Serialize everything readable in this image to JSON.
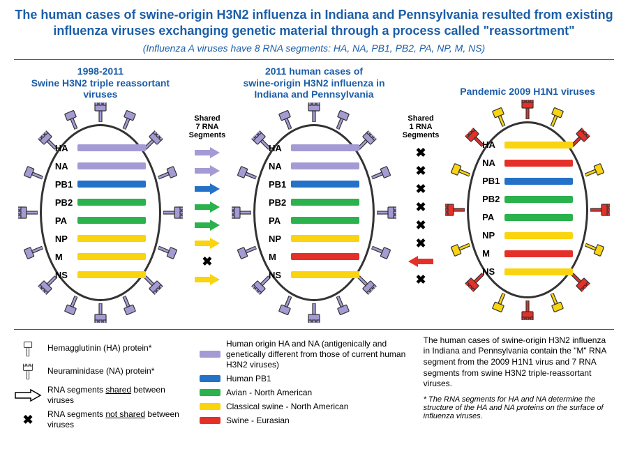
{
  "colors": {
    "blue_text": "#1c5ea8",
    "purple": "#a49bd4",
    "blue": "#2471c8",
    "green": "#2bb24c",
    "yellow": "#f9d40f",
    "red": "#e5302a",
    "black": "#000000",
    "outline": "#333333"
  },
  "title": "The human cases of swine-origin H3N2 influenza in Indiana and Pennsylvania resulted from existing influenza viruses exchanging genetic material through a process called \"reassortment\"",
  "subtitle": "(Influenza A viruses have 8 RNA segments: HA, NA, PB1, PB2, PA, NP, M, NS)",
  "viruses": [
    {
      "title": "1998-2011\nSwine H3N2 triple reassortant viruses",
      "spike_color": "purple",
      "spike_alt_color": "purple",
      "segments": [
        {
          "label": "HA",
          "color": "purple"
        },
        {
          "label": "NA",
          "color": "purple"
        },
        {
          "label": "PB1",
          "color": "blue"
        },
        {
          "label": "PB2",
          "color": "green"
        },
        {
          "label": "PA",
          "color": "green"
        },
        {
          "label": "NP",
          "color": "yellow"
        },
        {
          "label": "M",
          "color": "yellow"
        },
        {
          "label": "NS",
          "color": "yellow"
        }
      ]
    },
    {
      "title": "2011 human cases of\nswine-origin H3N2 influenza in\nIndiana and Pennsylvania",
      "spike_color": "purple",
      "spike_alt_color": "purple",
      "segments": [
        {
          "label": "HA",
          "color": "purple"
        },
        {
          "label": "NA",
          "color": "purple"
        },
        {
          "label": "PB1",
          "color": "blue"
        },
        {
          "label": "PB2",
          "color": "green"
        },
        {
          "label": "PA",
          "color": "green"
        },
        {
          "label": "NP",
          "color": "yellow"
        },
        {
          "label": "M",
          "color": "red"
        },
        {
          "label": "NS",
          "color": "yellow"
        }
      ]
    },
    {
      "title": "Pandemic 2009 H1N1 viruses",
      "spike_color": "red",
      "spike_alt_color": "yellow",
      "segments": [
        {
          "label": "HA",
          "color": "yellow"
        },
        {
          "label": "NA",
          "color": "red"
        },
        {
          "label": "PB1",
          "color": "blue"
        },
        {
          "label": "PB2",
          "color": "green"
        },
        {
          "label": "PA",
          "color": "green"
        },
        {
          "label": "NP",
          "color": "yellow"
        },
        {
          "label": "M",
          "color": "red"
        },
        {
          "label": "NS",
          "color": "yellow"
        }
      ]
    }
  ],
  "between": [
    {
      "heading": "Shared 7 RNA Segments",
      "rows": [
        {
          "type": "arrow",
          "color": "purple",
          "dir": "right"
        },
        {
          "type": "arrow",
          "color": "purple",
          "dir": "right"
        },
        {
          "type": "arrow",
          "color": "blue",
          "dir": "right"
        },
        {
          "type": "arrow",
          "color": "green",
          "dir": "right"
        },
        {
          "type": "arrow",
          "color": "green",
          "dir": "right"
        },
        {
          "type": "arrow",
          "color": "yellow",
          "dir": "right"
        },
        {
          "type": "x"
        },
        {
          "type": "arrow",
          "color": "yellow",
          "dir": "right"
        }
      ]
    },
    {
      "heading": "Shared 1 RNA Segments",
      "rows": [
        {
          "type": "x"
        },
        {
          "type": "x"
        },
        {
          "type": "x"
        },
        {
          "type": "x"
        },
        {
          "type": "x"
        },
        {
          "type": "x"
        },
        {
          "type": "arrow",
          "color": "red",
          "dir": "left"
        },
        {
          "type": "x"
        }
      ]
    }
  ],
  "legend": {
    "col1": [
      {
        "icon": "ha",
        "text": "Hemagglutinin (HA) protein*"
      },
      {
        "icon": "na",
        "text": "Neuraminidase (NA) protein*"
      },
      {
        "icon": "arrow_outline",
        "text_html": "RNA segments <u>shared</u> between viruses"
      },
      {
        "icon": "x",
        "text_html": "RNA segments <u>not shared</u> between viruses"
      }
    ],
    "col2": [
      {
        "swatch": "purple",
        "text": "Human origin HA and NA (antigenically and genetically different from those of current human H3N2 viruses)"
      },
      {
        "swatch": "blue",
        "text": "Human PB1"
      },
      {
        "swatch": "green",
        "text": "Avian - North American"
      },
      {
        "swatch": "yellow",
        "text": "Classical swine - North American"
      },
      {
        "swatch": "red",
        "text": "Swine - Eurasian"
      }
    ],
    "col3": {
      "desc": "The human cases of swine-origin H3N2 influenza in Indiana and Pennsylvania contain the \"M\" RNA segment from the 2009 H1N1 virus and 7 RNA segments from swine H3N2 triple-reassortant viruses.",
      "note": "* The RNA segments for HA and NA determine the structure of the HA and NA proteins on the surface of influenza viruses."
    }
  }
}
